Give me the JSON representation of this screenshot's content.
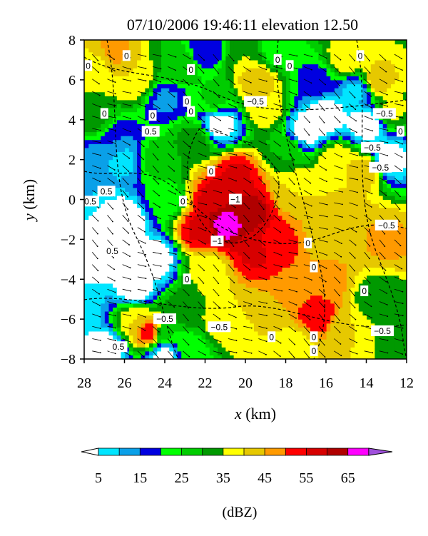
{
  "chart_data": {
    "type": "heatmap",
    "title": "07/10/2006 19:46:11 elevation 12.50",
    "xlabel_var": "x",
    "xlabel_unit": "(km)",
    "ylabel_var": "y",
    "ylabel_unit": "(km)",
    "xlim": [
      28,
      12
    ],
    "ylim": [
      -8,
      8
    ],
    "xticks": [
      "28",
      "26",
      "24",
      "22",
      "20",
      "18",
      "16",
      "14",
      "12"
    ],
    "yticks": [
      "8",
      "6",
      "4",
      "2",
      "0",
      "−2",
      "−4",
      "−6",
      "−8"
    ],
    "grid": false,
    "reflectivity_cells": [
      {
        "x": 21.0,
        "y": -1.2,
        "dbz": 68
      },
      {
        "x": 20.0,
        "y": -0.6,
        "dbz": 64
      },
      {
        "x": 21.5,
        "y": 0.0,
        "dbz": 58
      },
      {
        "x": 20.5,
        "y": 1.2,
        "dbz": 56
      },
      {
        "x": 22.3,
        "y": -1.5,
        "dbz": 56
      },
      {
        "x": 19.5,
        "y": -2.6,
        "dbz": 56
      },
      {
        "x": 18.5,
        "y": -2.2,
        "dbz": 53
      },
      {
        "x": 16.5,
        "y": -5.8,
        "dbz": 55
      },
      {
        "x": 17.5,
        "y": -4.5,
        "dbz": 48
      },
      {
        "x": 16.0,
        "y": -4.0,
        "dbz": 47
      },
      {
        "x": 15.0,
        "y": -1.0,
        "dbz": 45
      },
      {
        "x": 14.0,
        "y": 1.5,
        "dbz": 45
      },
      {
        "x": 13.0,
        "y": -2.0,
        "dbz": 46
      },
      {
        "x": 17.5,
        "y": 0.5,
        "dbz": 40
      },
      {
        "x": 15.5,
        "y": 2.0,
        "dbz": 40
      },
      {
        "x": 16.0,
        "y": -2.0,
        "dbz": 42
      },
      {
        "x": 19.5,
        "y": 6.0,
        "dbz": 45
      },
      {
        "x": 19.0,
        "y": 4.6,
        "dbz": 40
      },
      {
        "x": 20.0,
        "y": 7.2,
        "dbz": 35
      },
      {
        "x": 13.5,
        "y": 6.0,
        "dbz": 44
      },
      {
        "x": 15.0,
        "y": 7.0,
        "dbz": 40
      },
      {
        "x": 12.8,
        "y": 4.5,
        "dbz": 36
      },
      {
        "x": 26.5,
        "y": 7.4,
        "dbz": 46
      },
      {
        "x": 25.5,
        "y": 6.0,
        "dbz": 40
      },
      {
        "x": 27.5,
        "y": 6.5,
        "dbz": 38
      },
      {
        "x": 27.5,
        "y": 4.0,
        "dbz": 32
      },
      {
        "x": 23.3,
        "y": 6.8,
        "dbz": 30
      },
      {
        "x": 24.8,
        "y": -6.6,
        "dbz": 55
      },
      {
        "x": 25.5,
        "y": -6.0,
        "dbz": 40
      },
      {
        "x": 23.0,
        "y": -5.5,
        "dbz": 34
      },
      {
        "x": 22.0,
        "y": -3.5,
        "dbz": 36
      },
      {
        "x": 21.0,
        "y": -6.0,
        "dbz": 40
      },
      {
        "x": 19.0,
        "y": -6.0,
        "dbz": 40
      },
      {
        "x": 17.5,
        "y": -7.2,
        "dbz": 38
      },
      {
        "x": 15.0,
        "y": -6.5,
        "dbz": 40
      },
      {
        "x": 13.5,
        "y": -5.0,
        "dbz": 30
      },
      {
        "x": 12.5,
        "y": -7.0,
        "dbz": 33
      },
      {
        "x": 22.5,
        "y": 3.0,
        "dbz": 33
      },
      {
        "x": 18.0,
        "y": 2.5,
        "dbz": 30
      },
      {
        "x": 23.0,
        "y": -7.5,
        "dbz": 22
      },
      {
        "x": 24.0,
        "y": 0.0,
        "dbz": 22
      },
      {
        "x": 24.5,
        "y": 2.0,
        "dbz": 28
      },
      {
        "x": 21.5,
        "y": 5.0,
        "dbz": 26
      },
      {
        "x": 18.5,
        "y": 7.5,
        "dbz": 22
      },
      {
        "x": 16.5,
        "y": 6.0,
        "dbz": 18
      },
      {
        "x": 22.0,
        "y": 7.5,
        "dbz": 16
      },
      {
        "x": 24.0,
        "y": 5.0,
        "dbz": 14
      },
      {
        "x": 26.5,
        "y": 3.0,
        "dbz": 15
      },
      {
        "x": 26.0,
        "y": 2.0,
        "dbz": 8
      },
      {
        "x": 27.5,
        "y": 1.8,
        "dbz": 10
      },
      {
        "x": 28.0,
        "y": -5.5,
        "dbz": 8
      },
      {
        "x": 27.5,
        "y": -3.0,
        "dbz": 0
      },
      {
        "x": 26.0,
        "y": -1.0,
        "dbz": 0
      },
      {
        "x": 25.5,
        "y": -4.5,
        "dbz": 0
      },
      {
        "x": 27.0,
        "y": -7.5,
        "dbz": 0
      },
      {
        "x": 17.0,
        "y": 3.5,
        "dbz": 0
      },
      {
        "x": 16.0,
        "y": 4.2,
        "dbz": 0
      },
      {
        "x": 14.0,
        "y": 3.8,
        "dbz": 0
      },
      {
        "x": 13.0,
        "y": 2.0,
        "dbz": 0
      },
      {
        "x": 14.5,
        "y": 5.5,
        "dbz": 8
      },
      {
        "x": 21.3,
        "y": 3.8,
        "dbz": 0
      },
      {
        "x": 24.0,
        "y": -6.7,
        "dbz": 25
      },
      {
        "x": 24.5,
        "y": -3.0,
        "dbz": 0
      },
      {
        "x": 24.0,
        "y": -7.8,
        "dbz": 0
      }
    ],
    "contour_labels": [
      {
        "text": "0",
        "x": 25.9,
        "y": 7.2
      },
      {
        "text": "0",
        "x": 27.8,
        "y": 6.7
      },
      {
        "text": "0",
        "x": 22.7,
        "y": 6.5
      },
      {
        "text": "0",
        "x": 18.4,
        "y": 7.0
      },
      {
        "text": "0",
        "x": 17.8,
        "y": 6.7
      },
      {
        "text": "0",
        "x": 14.3,
        "y": 7.2
      },
      {
        "text": "0",
        "x": 22.9,
        "y": 4.9
      },
      {
        "text": "0",
        "x": 22.7,
        "y": 4.4
      },
      {
        "text": "0",
        "x": 27.0,
        "y": 4.3
      },
      {
        "text": "0",
        "x": 24.6,
        "y": 4.2
      },
      {
        "text": "0.5",
        "x": 24.7,
        "y": 3.4
      },
      {
        "text": "−0.5",
        "x": 19.5,
        "y": 4.9
      },
      {
        "text": "−0.5",
        "x": 13.1,
        "y": 4.3
      },
      {
        "text": "0",
        "x": 12.3,
        "y": 3.4
      },
      {
        "text": "−0.5",
        "x": 13.7,
        "y": 2.6
      },
      {
        "text": "−0.5",
        "x": 13.3,
        "y": 1.6
      },
      {
        "text": "0",
        "x": 21.7,
        "y": 1.4
      },
      {
        "text": "0.5",
        "x": 26.9,
        "y": 0.4
      },
      {
        "text": "0.5",
        "x": 27.7,
        "y": -0.1
      },
      {
        "text": "0",
        "x": 23.1,
        "y": -0.1
      },
      {
        "text": "−1",
        "x": 20.5,
        "y": 0.0
      },
      {
        "text": "−0.5",
        "x": 13.0,
        "y": -1.3
      },
      {
        "text": "0",
        "x": 16.9,
        "y": -2.2
      },
      {
        "text": "−1",
        "x": 21.4,
        "y": -2.1
      },
      {
        "text": "0.5",
        "x": 26.6,
        "y": -2.6
      },
      {
        "text": "0",
        "x": 16.6,
        "y": -3.4
      },
      {
        "text": "0",
        "x": 22.9,
        "y": -4.0
      },
      {
        "text": "0",
        "x": 14.1,
        "y": -4.6
      },
      {
        "text": "−0.5",
        "x": 24.0,
        "y": -6.0
      },
      {
        "text": "−0.5",
        "x": 21.3,
        "y": -6.4
      },
      {
        "text": "−0.5",
        "x": 13.2,
        "y": -6.6
      },
      {
        "text": "0",
        "x": 18.7,
        "y": -6.9
      },
      {
        "text": "0",
        "x": 16.6,
        "y": -6.9
      },
      {
        "text": "0.5",
        "x": 26.3,
        "y": -7.4
      },
      {
        "text": "0",
        "x": 16.6,
        "y": -7.6
      }
    ]
  },
  "colorbar": {
    "label": "(dBZ)",
    "tick_labels": [
      "5",
      "15",
      "25",
      "35",
      "45",
      "55",
      "65"
    ],
    "tick_values": [
      5,
      15,
      25,
      35,
      45,
      55,
      65
    ],
    "levels": [
      5,
      10,
      15,
      20,
      25,
      30,
      35,
      40,
      45,
      50,
      55,
      60,
      65,
      70
    ],
    "colors": [
      "#00e5ff",
      "#0aa0e8",
      "#0000e0",
      "#00ff00",
      "#00cc00",
      "#009900",
      "#ffff00",
      "#e6c800",
      "#ff9a00",
      "#ff0000",
      "#d70000",
      "#b00000",
      "#ff00ff",
      "#a050dc"
    ]
  }
}
